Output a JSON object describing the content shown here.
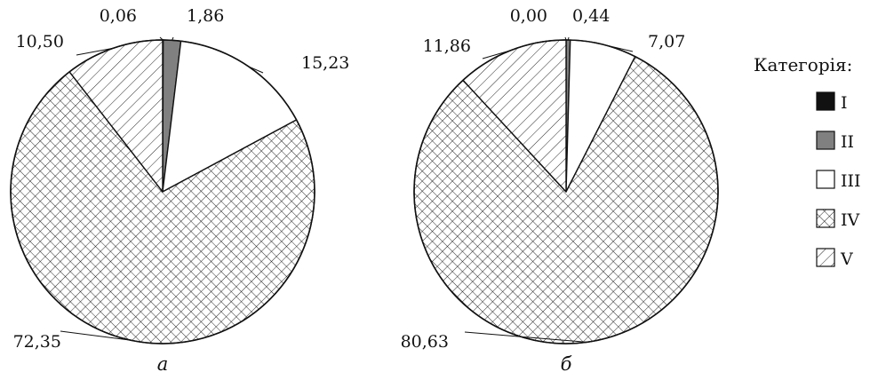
{
  "legend": {
    "title": "Категорія:",
    "items": [
      {
        "label": "I",
        "fill": "solid",
        "color": "#111111"
      },
      {
        "label": "II",
        "fill": "solid",
        "color": "#808080"
      },
      {
        "label": "III",
        "fill": "solid",
        "color": "#ffffff"
      },
      {
        "label": "IV",
        "fill": "crosshatch",
        "color": "#ffffff"
      },
      {
        "label": "V",
        "fill": "diagonal",
        "color": "#ffffff"
      }
    ]
  },
  "chart_data": [
    {
      "type": "pie",
      "caption": "а",
      "categories": [
        "I",
        "II",
        "III",
        "IV",
        "V"
      ],
      "values": [
        0.06,
        1.86,
        15.23,
        72.35,
        10.5
      ],
      "value_labels": [
        "0,06",
        "1,86",
        "15,23",
        "72,35",
        "10,50"
      ]
    },
    {
      "type": "pie",
      "caption": "б",
      "categories": [
        "I",
        "II",
        "III",
        "IV",
        "V"
      ],
      "values": [
        0.0,
        0.44,
        7.07,
        80.63,
        11.86
      ],
      "value_labels": [
        "0,00",
        "0,44",
        "7,07",
        "80,63",
        "11,86"
      ]
    }
  ]
}
